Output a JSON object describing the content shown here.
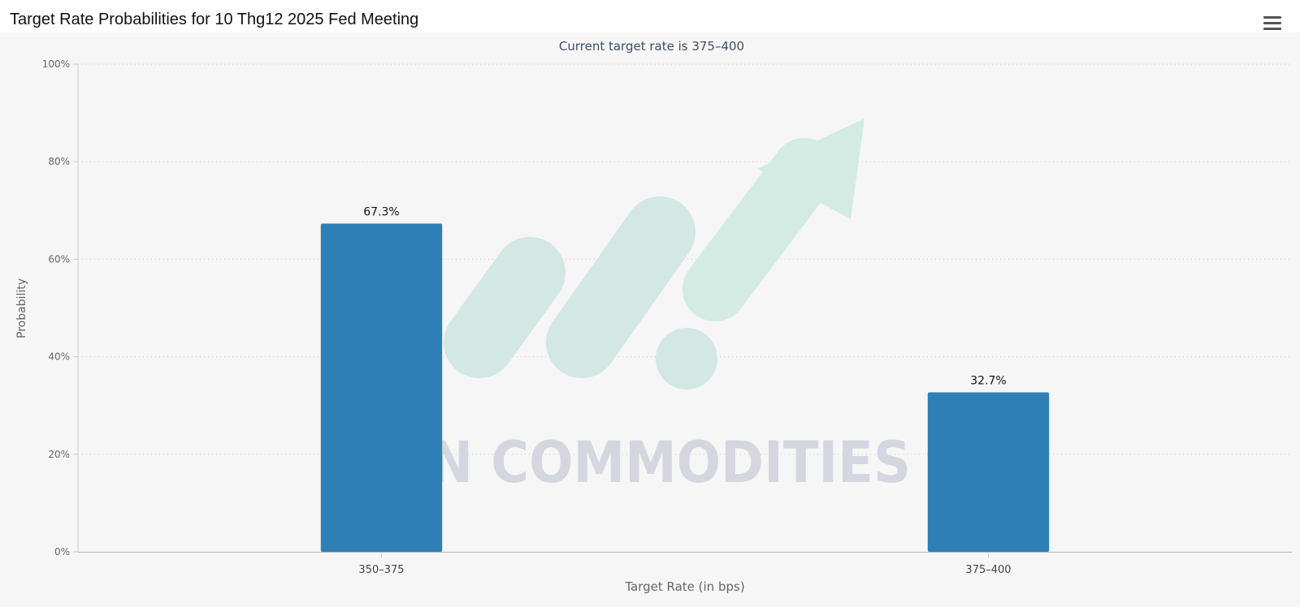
{
  "header": {
    "title": "Target Rate Probabilities for 10 Thg12 2025 Fed Meeting",
    "menu_icon": "hamburger-menu-icon"
  },
  "watermark": {
    "text": "VN COMMODITIES",
    "icon": "upward-trend-arrow-logo"
  },
  "colors": {
    "bar": "#2e7fb6",
    "plot_background": "#f6f6f6",
    "gridline": "#c8c8c8",
    "subtitle": "#3d4f66",
    "watermark_text": "#d4d7df",
    "watermark_logo": "#d3ebe2"
  },
  "chart_data": {
    "type": "bar",
    "title": "Target Rate Probabilities for 10 Thg12 2025 Fed Meeting",
    "subtitle": "Current target rate is 375–400",
    "xlabel": "Target Rate (in bps)",
    "ylabel": "Probability",
    "categories": [
      "350–375",
      "375–400"
    ],
    "values": [
      67.3,
      32.7
    ],
    "data_labels": [
      "67.3%",
      "32.7%"
    ],
    "ylim": [
      0,
      100
    ],
    "yticks": [
      0,
      20,
      40,
      60,
      80,
      100
    ],
    "ytick_labels": [
      "0%",
      "20%",
      "40%",
      "60%",
      "80%",
      "100%"
    ],
    "grid": "dotted horizontal",
    "legend": "none"
  }
}
